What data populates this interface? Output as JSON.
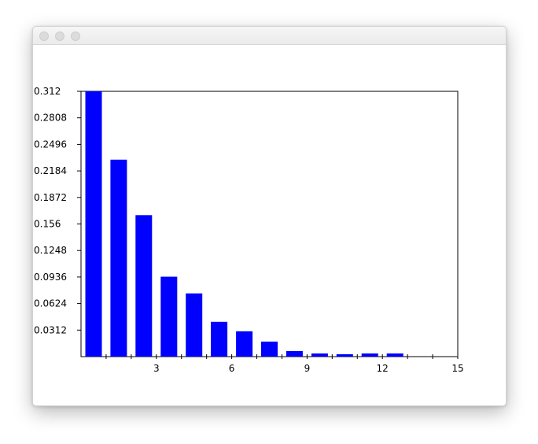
{
  "window": {
    "title": ""
  },
  "colors": {
    "bar": "#0000ff",
    "axis": "#000000"
  },
  "chart_data": {
    "type": "bar",
    "title": "",
    "xlabel": "",
    "ylabel": "",
    "xlim": [
      0,
      15
    ],
    "ylim": [
      0,
      0.312
    ],
    "grid": false,
    "x_ticks": [
      3,
      6,
      9,
      12,
      15
    ],
    "y_ticks": [
      "0.312",
      "0.2808",
      "0.2496",
      "0.2184",
      "0.1872",
      "0.156",
      "0.1248",
      "0.0936",
      "0.0624",
      "0.0312"
    ],
    "bars": [
      {
        "x": 0.5,
        "value": 0.312
      },
      {
        "x": 1.5,
        "value": 0.2316
      },
      {
        "x": 2.5,
        "value": 0.1664
      },
      {
        "x": 3.5,
        "value": 0.094
      },
      {
        "x": 4.5,
        "value": 0.0743
      },
      {
        "x": 5.5,
        "value": 0.0409
      },
      {
        "x": 6.5,
        "value": 0.0298
      },
      {
        "x": 7.5,
        "value": 0.0177
      },
      {
        "x": 8.5,
        "value": 0.0065
      },
      {
        "x": 9.5,
        "value": 0.0037
      },
      {
        "x": 10.5,
        "value": 0.0028
      },
      {
        "x": 11.5,
        "value": 0.0037
      },
      {
        "x": 12.5,
        "value": 0.0037
      }
    ]
  }
}
